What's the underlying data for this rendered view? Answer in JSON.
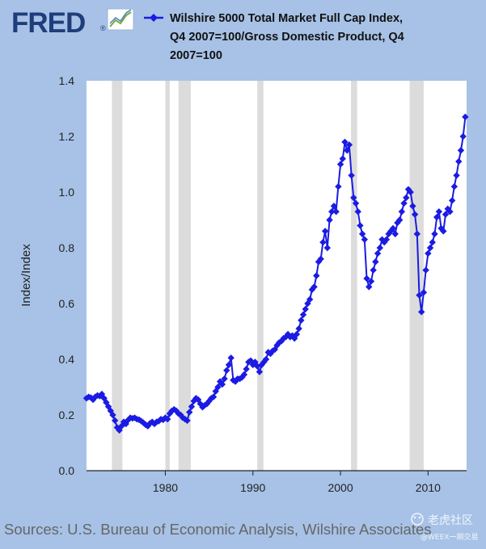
{
  "header": {
    "logo_text": "FRED",
    "logo_trademark": "®",
    "legend_lines": [
      "Wilshire 5000 Total Market Full Cap Index,",
      "Q4 2007=100/Gross Domestic Product, Q4",
      "2007=100"
    ]
  },
  "footer": {
    "sources": "Sources: U.S. Bureau of Economic Analysis, Wilshire Associates"
  },
  "watermark": {
    "line1": "老虎社区",
    "line2": "@WEEX一期交易"
  },
  "colors": {
    "background": "#a7c2e6",
    "plot_background": "#ffffff",
    "series": "#1b1be3",
    "recession": "#dcdcdc",
    "logo_blue": "#1f3d7a"
  },
  "chart_data": {
    "type": "line",
    "title": "",
    "xlabel": "",
    "ylabel": "Index/Index",
    "xlim": [
      1971.0,
      2014.4
    ],
    "ylim": [
      0.0,
      1.4
    ],
    "x_ticks": [
      1980,
      1990,
      2000,
      2010
    ],
    "y_ticks": [
      0.0,
      0.2,
      0.4,
      0.6,
      0.8,
      1.0,
      1.2,
      1.4
    ],
    "y_tick_labels": [
      "0.0",
      "0.2",
      "0.4",
      "0.6",
      "0.8",
      "1.0",
      "1.2",
      "1.4"
    ],
    "grid": false,
    "legend": "top",
    "marker": "diamond",
    "recessions": [
      [
        1973.9,
        1975.1
      ],
      [
        1980.0,
        1980.5
      ],
      [
        1981.5,
        1982.9
      ],
      [
        1990.5,
        1991.2
      ],
      [
        2001.2,
        2001.9
      ],
      [
        2007.9,
        2009.5
      ]
    ],
    "series": [
      {
        "name": "Wilshire 5000 Total Market Full Cap Index, Q4 2007=100/Gross Domestic Product, Q4 2007=100",
        "points": [
          [
            1971.0,
            0.26
          ],
          [
            1971.25,
            0.265
          ],
          [
            1971.5,
            0.262
          ],
          [
            1971.75,
            0.255
          ],
          [
            1972.0,
            0.265
          ],
          [
            1972.25,
            0.27
          ],
          [
            1972.5,
            0.268
          ],
          [
            1972.75,
            0.275
          ],
          [
            1973.0,
            0.26
          ],
          [
            1973.25,
            0.245
          ],
          [
            1973.5,
            0.23
          ],
          [
            1973.75,
            0.215
          ],
          [
            1974.0,
            0.2
          ],
          [
            1974.25,
            0.18
          ],
          [
            1974.5,
            0.155
          ],
          [
            1974.75,
            0.145
          ],
          [
            1975.0,
            0.16
          ],
          [
            1975.25,
            0.175
          ],
          [
            1975.5,
            0.168
          ],
          [
            1975.75,
            0.182
          ],
          [
            1976.0,
            0.19
          ],
          [
            1976.25,
            0.188
          ],
          [
            1976.5,
            0.19
          ],
          [
            1976.75,
            0.185
          ],
          [
            1977.0,
            0.183
          ],
          [
            1977.25,
            0.178
          ],
          [
            1977.5,
            0.172
          ],
          [
            1977.75,
            0.165
          ],
          [
            1978.0,
            0.16
          ],
          [
            1978.25,
            0.17
          ],
          [
            1978.5,
            0.175
          ],
          [
            1978.75,
            0.168
          ],
          [
            1979.0,
            0.175
          ],
          [
            1979.25,
            0.178
          ],
          [
            1979.5,
            0.185
          ],
          [
            1979.75,
            0.183
          ],
          [
            1980.0,
            0.19
          ],
          [
            1980.25,
            0.185
          ],
          [
            1980.5,
            0.205
          ],
          [
            1980.75,
            0.215
          ],
          [
            1981.0,
            0.22
          ],
          [
            1981.25,
            0.215
          ],
          [
            1981.5,
            0.205
          ],
          [
            1981.75,
            0.2
          ],
          [
            1982.0,
            0.19
          ],
          [
            1982.25,
            0.185
          ],
          [
            1982.5,
            0.18
          ],
          [
            1982.75,
            0.21
          ],
          [
            1983.0,
            0.23
          ],
          [
            1983.25,
            0.25
          ],
          [
            1983.5,
            0.26
          ],
          [
            1983.75,
            0.255
          ],
          [
            1984.0,
            0.24
          ],
          [
            1984.25,
            0.228
          ],
          [
            1984.5,
            0.235
          ],
          [
            1984.75,
            0.24
          ],
          [
            1985.0,
            0.25
          ],
          [
            1985.25,
            0.26
          ],
          [
            1985.5,
            0.265
          ],
          [
            1985.75,
            0.285
          ],
          [
            1986.0,
            0.3
          ],
          [
            1986.25,
            0.32
          ],
          [
            1986.5,
            0.31
          ],
          [
            1986.75,
            0.33
          ],
          [
            1987.0,
            0.36
          ],
          [
            1987.25,
            0.38
          ],
          [
            1987.5,
            0.405
          ],
          [
            1987.75,
            0.325
          ],
          [
            1988.0,
            0.32
          ],
          [
            1988.25,
            0.33
          ],
          [
            1988.5,
            0.33
          ],
          [
            1988.75,
            0.335
          ],
          [
            1989.0,
            0.345
          ],
          [
            1989.25,
            0.365
          ],
          [
            1989.5,
            0.39
          ],
          [
            1989.75,
            0.395
          ],
          [
            1990.0,
            0.38
          ],
          [
            1990.25,
            0.39
          ],
          [
            1990.5,
            0.375
          ],
          [
            1990.75,
            0.355
          ],
          [
            1991.0,
            0.38
          ],
          [
            1991.25,
            0.39
          ],
          [
            1991.5,
            0.4
          ],
          [
            1991.75,
            0.425
          ],
          [
            1992.0,
            0.42
          ],
          [
            1992.25,
            0.43
          ],
          [
            1992.5,
            0.435
          ],
          [
            1992.75,
            0.45
          ],
          [
            1993.0,
            0.46
          ],
          [
            1993.25,
            0.465
          ],
          [
            1993.5,
            0.475
          ],
          [
            1993.75,
            0.48
          ],
          [
            1994.0,
            0.49
          ],
          [
            1994.25,
            0.48
          ],
          [
            1994.5,
            0.485
          ],
          [
            1994.75,
            0.475
          ],
          [
            1995.0,
            0.49
          ],
          [
            1995.25,
            0.51
          ],
          [
            1995.5,
            0.54
          ],
          [
            1995.75,
            0.56
          ],
          [
            1996.0,
            0.58
          ],
          [
            1996.25,
            0.6
          ],
          [
            1996.5,
            0.615
          ],
          [
            1996.75,
            0.65
          ],
          [
            1997.0,
            0.66
          ],
          [
            1997.25,
            0.7
          ],
          [
            1997.5,
            0.75
          ],
          [
            1997.75,
            0.76
          ],
          [
            1998.0,
            0.82
          ],
          [
            1998.25,
            0.86
          ],
          [
            1998.5,
            0.8
          ],
          [
            1998.75,
            0.9
          ],
          [
            1999.0,
            0.93
          ],
          [
            1999.25,
            0.95
          ],
          [
            1999.5,
            0.93
          ],
          [
            1999.75,
            1.02
          ],
          [
            2000.0,
            1.1
          ],
          [
            2000.25,
            1.12
          ],
          [
            2000.5,
            1.18
          ],
          [
            2000.75,
            1.15
          ],
          [
            2001.0,
            1.17
          ],
          [
            2001.25,
            1.06
          ],
          [
            2001.5,
            0.98
          ],
          [
            2001.75,
            0.96
          ],
          [
            2002.0,
            0.93
          ],
          [
            2002.25,
            0.88
          ],
          [
            2002.5,
            0.85
          ],
          [
            2002.75,
            0.83
          ],
          [
            2003.0,
            0.69
          ],
          [
            2003.25,
            0.66
          ],
          [
            2003.5,
            0.68
          ],
          [
            2003.75,
            0.72
          ],
          [
            2004.0,
            0.75
          ],
          [
            2004.25,
            0.78
          ],
          [
            2004.5,
            0.8
          ],
          [
            2004.75,
            0.83
          ],
          [
            2005.0,
            0.82
          ],
          [
            2005.25,
            0.83
          ],
          [
            2005.5,
            0.85
          ],
          [
            2005.75,
            0.86
          ],
          [
            2006.0,
            0.87
          ],
          [
            2006.25,
            0.85
          ],
          [
            2006.5,
            0.89
          ],
          [
            2006.75,
            0.9
          ],
          [
            2007.0,
            0.93
          ],
          [
            2007.25,
            0.96
          ],
          [
            2007.5,
            0.98
          ],
          [
            2007.75,
            1.01
          ],
          [
            2008.0,
            1.0
          ],
          [
            2008.25,
            0.95
          ],
          [
            2008.5,
            0.92
          ],
          [
            2008.75,
            0.85
          ],
          [
            2009.0,
            0.63
          ],
          [
            2009.25,
            0.57
          ],
          [
            2009.5,
            0.64
          ],
          [
            2009.75,
            0.72
          ],
          [
            2010.0,
            0.78
          ],
          [
            2010.25,
            0.8
          ],
          [
            2010.5,
            0.82
          ],
          [
            2010.75,
            0.85
          ],
          [
            2011.0,
            0.91
          ],
          [
            2011.25,
            0.93
          ],
          [
            2011.5,
            0.87
          ],
          [
            2011.75,
            0.86
          ],
          [
            2012.0,
            0.92
          ],
          [
            2012.25,
            0.94
          ],
          [
            2012.5,
            0.93
          ],
          [
            2012.75,
            0.97
          ],
          [
            2013.0,
            1.02
          ],
          [
            2013.25,
            1.06
          ],
          [
            2013.5,
            1.11
          ],
          [
            2013.75,
            1.15
          ],
          [
            2014.0,
            1.2
          ],
          [
            2014.25,
            1.27
          ]
        ]
      }
    ]
  }
}
